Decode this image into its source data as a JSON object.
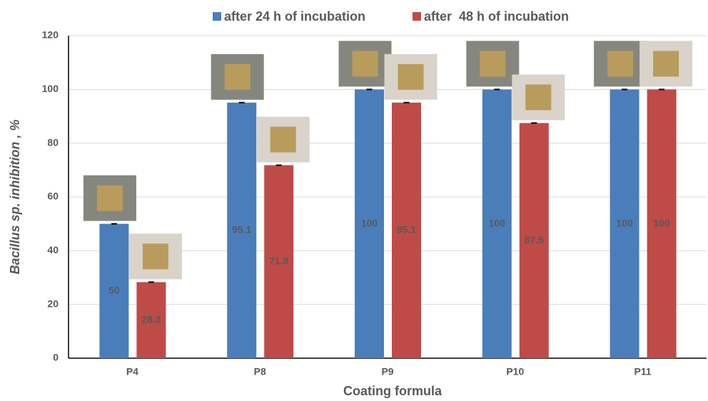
{
  "chart_data": {
    "type": "bar",
    "x_label": "Coating formula",
    "y_label": "Bacillus sp. inhibition , %",
    "categories": [
      "P4",
      "P8",
      "P9",
      "P10",
      "P11"
    ],
    "series": [
      {
        "name": "after 24 h of incubation",
        "color": "#4a7ebb",
        "values": [
          50,
          95.1,
          100,
          100,
          100
        ]
      },
      {
        "name": "after  48 h of incubation",
        "color": "#be4b48",
        "values": [
          28.3,
          71.8,
          95.1,
          87.5,
          100
        ]
      }
    ],
    "ylim": [
      0,
      120
    ],
    "yticks": [
      0,
      20,
      40,
      60,
      80,
      100,
      120
    ],
    "grid": true,
    "legend": "top"
  }
}
